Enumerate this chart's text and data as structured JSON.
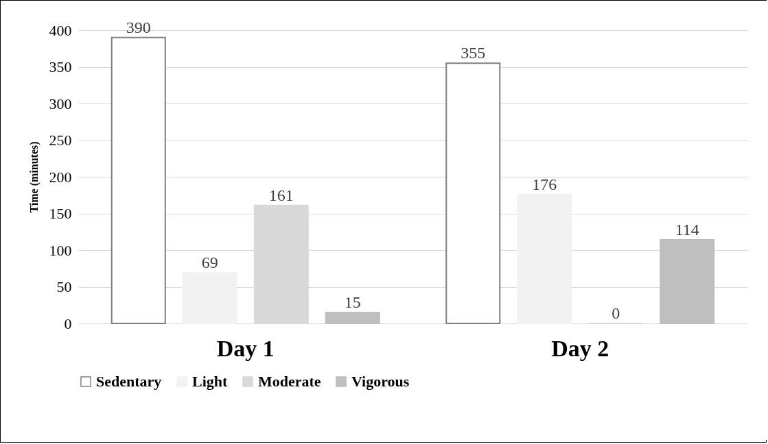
{
  "chart_data": {
    "type": "bar",
    "ylabel": "Time (minutes)",
    "categories": [
      "Day 1",
      "Day 2"
    ],
    "series": [
      {
        "name": "Sedentary",
        "color": "#ffffff",
        "values": [
          390,
          355
        ]
      },
      {
        "name": "Light",
        "color": "#f2f2f2",
        "values": [
          69,
          176
        ]
      },
      {
        "name": "Moderate",
        "color": "#d9d9d9",
        "values": [
          161,
          0
        ]
      },
      {
        "name": "Vigorous",
        "color": "#bfbfbf",
        "values": [
          15,
          114
        ]
      }
    ],
    "ylim": [
      0,
      400
    ],
    "yticks": [
      0,
      50,
      100,
      150,
      200,
      250,
      300,
      350,
      400
    ],
    "grid": "y",
    "legend": "bottom",
    "data_labels": true
  }
}
